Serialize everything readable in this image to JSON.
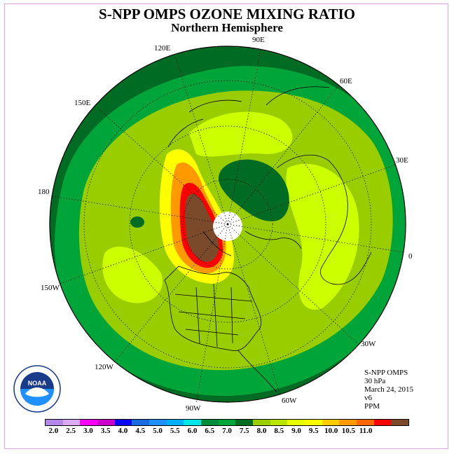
{
  "title": "S-NPP OMPS OZONE MIXING RATIO",
  "subtitle": "Northern Hemisphere",
  "longitude_labels": [
    {
      "text": "120E",
      "name": "lon-120e"
    },
    {
      "text": "90E",
      "name": "lon-90e"
    },
    {
      "text": "60E",
      "name": "lon-60e"
    },
    {
      "text": "150E",
      "name": "lon-150e"
    },
    {
      "text": "30E",
      "name": "lon-30e"
    },
    {
      "text": "180",
      "name": "lon-180"
    },
    {
      "text": "0",
      "name": "lon-0"
    },
    {
      "text": "150W",
      "name": "lon-150w"
    },
    {
      "text": "30W",
      "name": "lon-30w"
    },
    {
      "text": "120W",
      "name": "lon-120w"
    },
    {
      "text": "60W",
      "name": "lon-60w"
    },
    {
      "text": "90W",
      "name": "lon-90w"
    }
  ],
  "info": {
    "instrument": "S-NPP OMPS",
    "level": "30 hPa",
    "date": "March 24, 2015",
    "version": "v6",
    "units": "PPM"
  },
  "logo": {
    "text": "NOAA",
    "icon": "noaa-logo-icon"
  },
  "colorbar": {
    "colors": [
      "#b388e8",
      "#d9aaf2",
      "#ff00ff",
      "#cc00cc",
      "#0000ff",
      "#1a6be0",
      "#1e90ff",
      "#00b0ff",
      "#00e5e5",
      "#008b3a",
      "#00a53a",
      "#006b22",
      "#9acd00",
      "#b8e600",
      "#e6ff00",
      "#ffff00",
      "#ffcc00",
      "#ff9900",
      "#ff6600",
      "#ff0000",
      "#7a4a2a"
    ],
    "ticks": [
      "2.0",
      "2.5",
      "3.0",
      "3.5",
      "4.0",
      "4.5",
      "5.0",
      "5.5",
      "6.0",
      "6.5",
      "7.0",
      "7.5",
      "8.0",
      "8.5",
      "9.0",
      "9.5",
      "10.0",
      "10.5",
      "11.0"
    ]
  },
  "map_colors": {
    "dark_green": "#006b22",
    "mid_green": "#00a53a",
    "lime": "#9acd00",
    "yellow_green": "#ccff00",
    "yellow": "#ffff00",
    "orange": "#ff9900",
    "red": "#ff0000",
    "brown": "#7a4a2a"
  }
}
